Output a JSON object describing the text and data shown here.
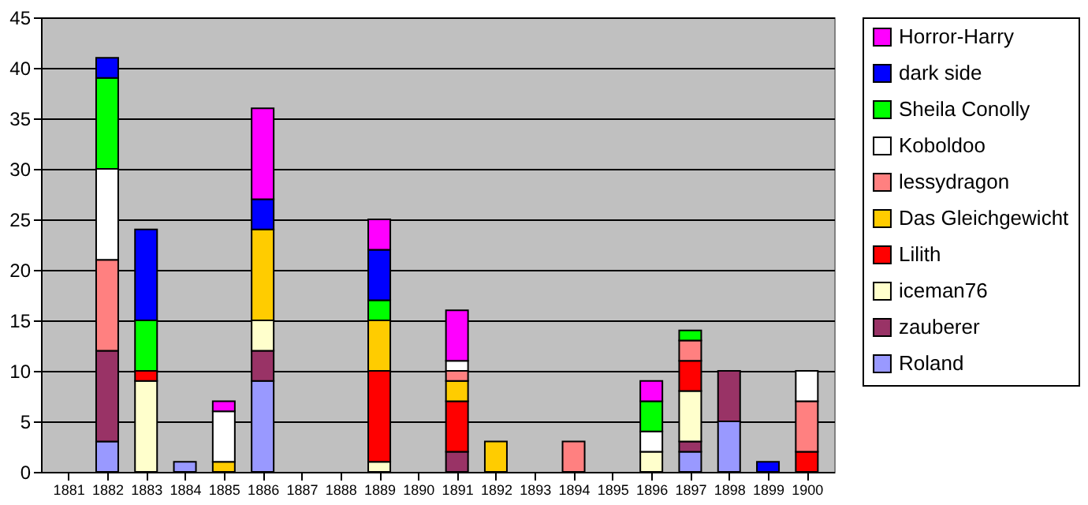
{
  "chart_data": {
    "type": "bar",
    "stacked": true,
    "categories": [
      "1881",
      "1882",
      "1883",
      "1884",
      "1885",
      "1886",
      "1887",
      "1888",
      "1889",
      "1890",
      "1891",
      "1892",
      "1893",
      "1894",
      "1895",
      "1896",
      "1897",
      "1898",
      "1899",
      "1900"
    ],
    "series": [
      {
        "name": "Roland",
        "color": "#9999ff",
        "values": [
          null,
          3,
          null,
          1,
          null,
          9,
          null,
          null,
          null,
          null,
          null,
          null,
          null,
          null,
          null,
          null,
          2,
          5,
          null,
          null
        ]
      },
      {
        "name": "zauberer",
        "color": "#993366",
        "values": [
          null,
          9,
          null,
          null,
          null,
          3,
          null,
          null,
          null,
          null,
          2,
          null,
          null,
          null,
          null,
          null,
          1,
          5,
          null,
          null
        ]
      },
      {
        "name": "iceman76",
        "color": "#ffffcc",
        "values": [
          null,
          null,
          9,
          null,
          null,
          3,
          null,
          null,
          1,
          null,
          null,
          null,
          null,
          null,
          null,
          2,
          5,
          null,
          null,
          null
        ]
      },
      {
        "name": "Lilith",
        "color": "#ff0000",
        "values": [
          null,
          null,
          1,
          null,
          null,
          null,
          null,
          null,
          9,
          null,
          5,
          null,
          null,
          null,
          null,
          null,
          3,
          null,
          null,
          2
        ]
      },
      {
        "name": "Das Gleichgewicht",
        "color": "#ffcc00",
        "values": [
          null,
          null,
          null,
          null,
          1,
          9,
          null,
          null,
          5,
          null,
          2,
          3,
          null,
          null,
          null,
          null,
          null,
          null,
          null,
          null
        ]
      },
      {
        "name": "lessydragon",
        "color": "#ff8080",
        "values": [
          null,
          9,
          null,
          null,
          null,
          null,
          null,
          null,
          null,
          null,
          1,
          null,
          null,
          3,
          null,
          null,
          2,
          null,
          null,
          5
        ]
      },
      {
        "name": "Koboldoo",
        "color": "#ffffff",
        "values": [
          null,
          9,
          null,
          null,
          5,
          null,
          null,
          null,
          null,
          null,
          1,
          null,
          null,
          null,
          null,
          2,
          null,
          null,
          null,
          3
        ]
      },
      {
        "name": "Sheila Conolly",
        "color": "#00ff00",
        "values": [
          null,
          9,
          5,
          null,
          null,
          null,
          null,
          null,
          2,
          null,
          null,
          null,
          null,
          null,
          null,
          3,
          1,
          null,
          null,
          null
        ]
      },
      {
        "name": "dark side",
        "color": "#0000ff",
        "values": [
          null,
          2,
          9,
          null,
          null,
          3,
          null,
          null,
          5,
          null,
          null,
          null,
          null,
          null,
          null,
          null,
          null,
          null,
          1,
          null
        ]
      },
      {
        "name": "Horror-Harry",
        "color": "#ff00ff",
        "values": [
          null,
          null,
          null,
          null,
          1,
          9,
          null,
          null,
          3,
          null,
          5,
          null,
          null,
          null,
          null,
          2,
          null,
          null,
          null,
          null
        ]
      }
    ],
    "ylim": [
      0,
      45
    ],
    "yticks": [
      0,
      5,
      10,
      15,
      20,
      25,
      30,
      35,
      40,
      45
    ],
    "grid": "y",
    "legend": "right"
  }
}
